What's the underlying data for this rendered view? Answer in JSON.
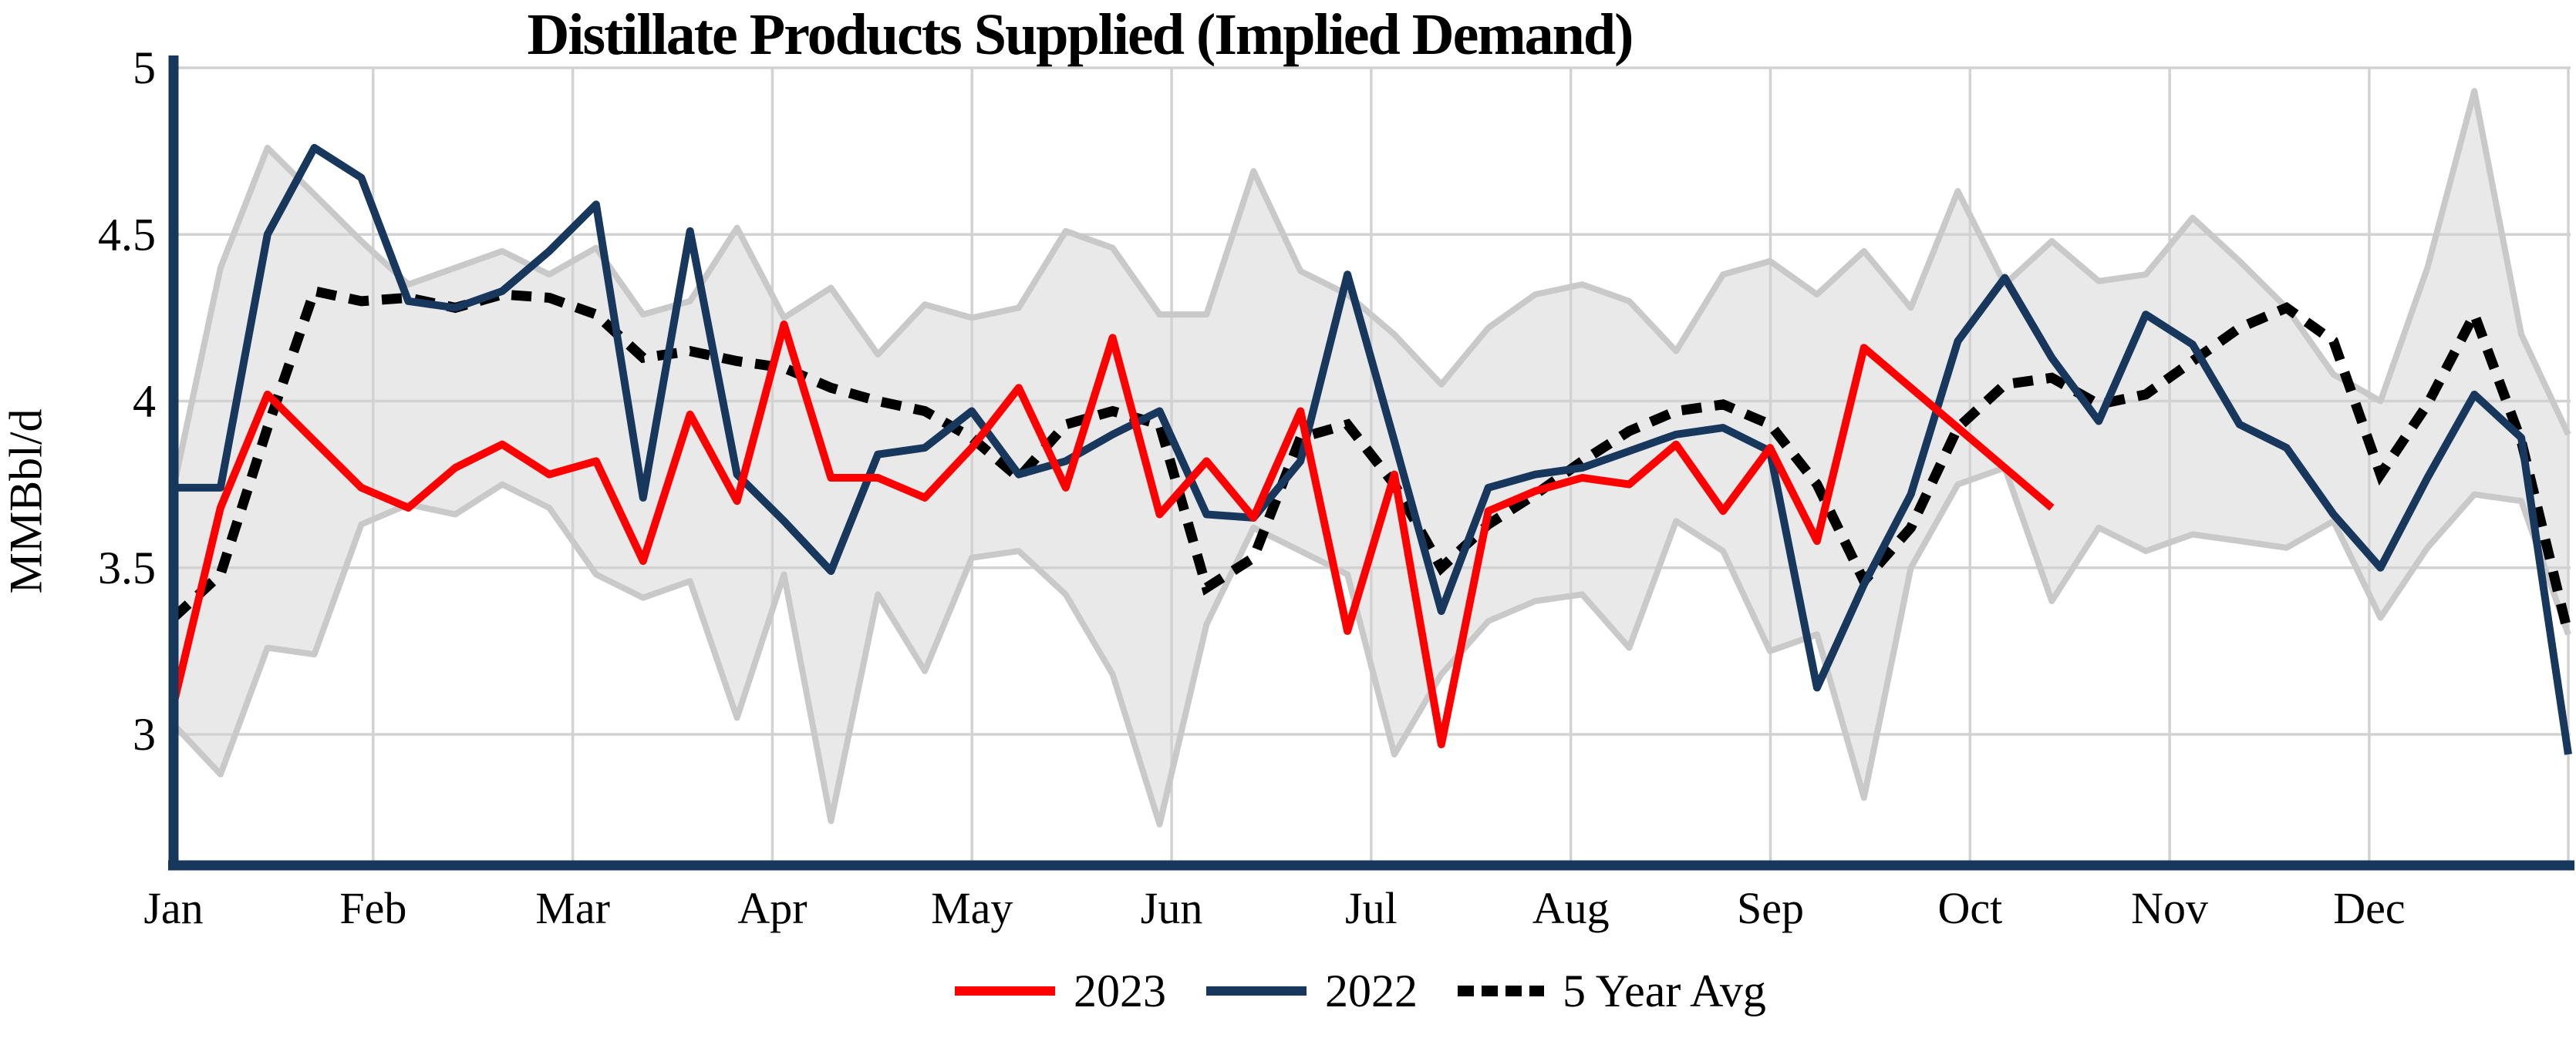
{
  "chart_data": {
    "type": "line",
    "title": "Distillate Products Supplied (Implied Demand)",
    "ylabel": "MMBbl/d",
    "x_axis": {
      "months": [
        "Jan",
        "Feb",
        "Mar",
        "Apr",
        "May",
        "Jun",
        "Jul",
        "Aug",
        "Sep",
        "Oct",
        "Nov",
        "Dec"
      ],
      "points_per_year": 52,
      "unit": "week"
    },
    "y_axis": {
      "ticks": [
        {
          "label": "5",
          "value": 5.0
        },
        {
          "label": "4.5",
          "value": 4.5
        },
        {
          "label": "4",
          "value": 4.0
        },
        {
          "label": "3.5",
          "value": 3.5
        },
        {
          "label": "3",
          "value": 3.0
        }
      ],
      "ylim": [
        2.6,
        5.0
      ],
      "grid": true
    },
    "colors": {
      "axis": "#17375d",
      "grid": "#d2d2d2",
      "band_fill": "#e9e9e9",
      "band_edge": "#c9c9c9",
      "red": "#ff0000",
      "navy": "#17375d",
      "black": "#000000",
      "background": "#ffffff"
    },
    "band": {
      "name": "5 Year Range",
      "upper": [
        3.74,
        4.4,
        4.76,
        4.62,
        4.48,
        4.35,
        4.4,
        4.45,
        4.38,
        4.46,
        4.26,
        4.3,
        4.52,
        4.25,
        4.34,
        4.14,
        4.29,
        4.25,
        4.28,
        4.51,
        4.46,
        4.26,
        4.26,
        4.69,
        4.39,
        4.32,
        4.2,
        4.05,
        4.22,
        4.32,
        4.35,
        4.3,
        4.15,
        4.38,
        4.42,
        4.32,
        4.45,
        4.28,
        4.63,
        4.35,
        4.48,
        4.36,
        4.38,
        4.55,
        4.42,
        4.28,
        4.08,
        4.0,
        4.4,
        4.93,
        4.2,
        3.9
      ],
      "lower": [
        3.03,
        2.88,
        3.26,
        3.24,
        3.63,
        3.69,
        3.66,
        3.75,
        3.68,
        3.48,
        3.41,
        3.46,
        3.05,
        3.48,
        2.74,
        3.42,
        3.19,
        3.53,
        3.55,
        3.42,
        3.18,
        2.73,
        3.33,
        3.62,
        3.55,
        3.48,
        2.94,
        3.18,
        3.34,
        3.4,
        3.42,
        3.26,
        3.64,
        3.55,
        3.25,
        3.3,
        2.81,
        3.5,
        3.75,
        3.8,
        3.4,
        3.62,
        3.55,
        3.6,
        3.58,
        3.56,
        3.64,
        3.35,
        3.56,
        3.72,
        3.7,
        3.3
      ]
    },
    "series": [
      {
        "name": "2023",
        "color": "#ff0000",
        "style": "solid",
        "values": [
          3.09,
          3.68,
          4.02,
          3.88,
          3.74,
          3.68,
          3.8,
          3.87,
          3.78,
          3.82,
          3.52,
          3.96,
          3.7,
          4.23,
          3.77,
          3.77,
          3.71,
          3.86,
          4.04,
          3.74,
          4.19,
          3.66,
          3.82,
          3.65,
          3.97,
          3.31,
          3.78,
          2.97,
          3.67,
          3.73,
          3.77,
          3.75,
          3.87,
          3.67,
          3.86,
          3.58,
          4.16,
          4.04,
          3.92,
          3.8,
          3.68
        ]
      },
      {
        "name": "2022",
        "color": "#17375d",
        "style": "solid",
        "values": [
          3.74,
          3.74,
          4.5,
          4.76,
          4.67,
          4.3,
          4.28,
          4.33,
          4.45,
          4.59,
          3.71,
          4.51,
          3.78,
          3.64,
          3.49,
          3.84,
          3.86,
          3.97,
          3.78,
          3.82,
          3.9,
          3.97,
          3.66,
          3.65,
          3.82,
          4.38,
          3.88,
          3.37,
          3.74,
          3.78,
          3.8,
          3.85,
          3.9,
          3.92,
          3.85,
          3.14,
          3.45,
          3.72,
          4.18,
          4.37,
          4.13,
          3.94,
          4.26,
          4.17,
          3.93,
          3.86,
          3.66,
          3.5,
          3.77,
          4.02,
          3.89,
          2.94
        ]
      },
      {
        "name": "5 Year Avg",
        "color": "#000000",
        "style": "dotted",
        "values": [
          3.35,
          3.48,
          3.92,
          4.33,
          4.3,
          4.31,
          4.28,
          4.32,
          4.31,
          4.26,
          4.13,
          4.15,
          4.12,
          4.1,
          4.04,
          4.0,
          3.97,
          3.89,
          3.77,
          3.93,
          3.97,
          3.93,
          3.44,
          3.53,
          3.89,
          3.93,
          3.75,
          3.5,
          3.63,
          3.72,
          3.82,
          3.91,
          3.97,
          3.99,
          3.93,
          3.75,
          3.46,
          3.62,
          3.92,
          4.05,
          4.07,
          3.99,
          4.02,
          4.12,
          4.22,
          4.28,
          4.18,
          3.78,
          3.99,
          4.26,
          3.88,
          3.3
        ]
      }
    ],
    "legend": {
      "entries": [
        "2023",
        "2022",
        "5 Year Avg"
      ],
      "position": "bottom"
    }
  }
}
